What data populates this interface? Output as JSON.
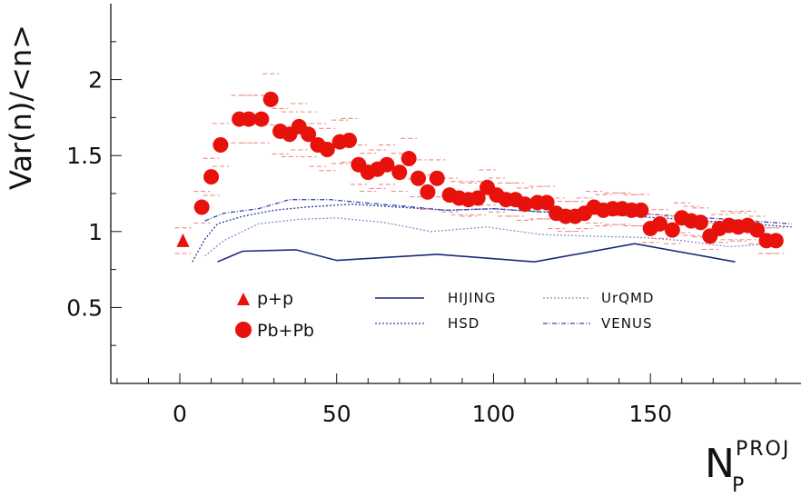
{
  "chart_data": {
    "type": "scatter",
    "xlabel": "N",
    "xlabel_sub": "P",
    "xlabel_sup": "PROJ",
    "ylabel": "Var(n)/<n>",
    "xlim": [
      -22,
      198
    ],
    "ylim": [
      0,
      2.5
    ],
    "x_ticks": [
      0,
      50,
      100,
      150
    ],
    "x_tick_labels": [
      "0",
      "50",
      "100",
      "150"
    ],
    "y_ticks": [
      0.5,
      1,
      1.5,
      2
    ],
    "y_tick_labels": [
      "0.5",
      "1",
      "1.5",
      "2"
    ],
    "grid": false,
    "legend": [
      {
        "label": "p+p",
        "marker": "triangle"
      },
      {
        "label": "Pb+Pb",
        "marker": "circle"
      },
      {
        "label": "HIJING",
        "style": "solid"
      },
      {
        "label": "HSD",
        "style": "dotted"
      },
      {
        "label": "UrQMD",
        "style": "dotted-light"
      },
      {
        "label": "VENUS",
        "style": "dash-dot"
      }
    ],
    "series": [
      {
        "name": "p+p",
        "marker": "triangle",
        "color": "#e8120c",
        "x": [
          1
        ],
        "y": [
          0.94
        ]
      },
      {
        "name": "Pb+Pb",
        "marker": "circle",
        "color": "#e8120c",
        "x": [
          7,
          10,
          13,
          19,
          22,
          26,
          29,
          32,
          35,
          38,
          41,
          44,
          47,
          51,
          54,
          57,
          60,
          63,
          66,
          70,
          73,
          76,
          79,
          82,
          86,
          89,
          92,
          95,
          98,
          101,
          104,
          107,
          110,
          114,
          117,
          120,
          123,
          126,
          129,
          132,
          135,
          138,
          141,
          144,
          147,
          150,
          153,
          157,
          160,
          163,
          166,
          169,
          172,
          175,
          178,
          181,
          184,
          187,
          190
        ],
        "y": [
          1.16,
          1.36,
          1.57,
          1.74,
          1.74,
          1.74,
          1.87,
          1.66,
          1.64,
          1.69,
          1.64,
          1.57,
          1.54,
          1.59,
          1.6,
          1.44,
          1.39,
          1.41,
          1.44,
          1.39,
          1.48,
          1.35,
          1.26,
          1.35,
          1.24,
          1.22,
          1.21,
          1.22,
          1.29,
          1.24,
          1.21,
          1.21,
          1.18,
          1.19,
          1.19,
          1.12,
          1.1,
          1.1,
          1.12,
          1.16,
          1.14,
          1.15,
          1.15,
          1.14,
          1.14,
          1.02,
          1.05,
          1.01,
          1.09,
          1.07,
          1.06,
          0.97,
          1.02,
          1.04,
          1.03,
          1.04,
          1.01,
          0.94,
          0.94
        ]
      },
      {
        "name": "HIJING",
        "style": "solid",
        "color": "#1c2a7a",
        "x": [
          12,
          20,
          37,
          50,
          82,
          113,
          145,
          177
        ],
        "y": [
          0.8,
          0.87,
          0.88,
          0.81,
          0.85,
          0.8,
          0.92,
          0.8
        ]
      },
      {
        "name": "HSD",
        "style": "dotted",
        "color": "#2b3aa0",
        "x": [
          4,
          8,
          12,
          20,
          30,
          40,
          55,
          70,
          85,
          100,
          115,
          130,
          145,
          160,
          175,
          195
        ],
        "y": [
          0.8,
          0.95,
          1.05,
          1.1,
          1.14,
          1.16,
          1.18,
          1.16,
          1.14,
          1.15,
          1.13,
          1.12,
          1.1,
          1.08,
          1.06,
          1.03
        ]
      },
      {
        "name": "UrQMD",
        "style": "dotted-light",
        "color": "#8a92c8",
        "x": [
          8,
          14,
          25,
          38,
          50,
          65,
          80,
          98,
          115,
          130,
          148,
          160,
          175,
          190
        ],
        "y": [
          0.84,
          0.94,
          1.05,
          1.08,
          1.09,
          1.06,
          1.0,
          1.03,
          0.98,
          0.97,
          0.96,
          0.94,
          0.9,
          0.92
        ]
      },
      {
        "name": "VENUS",
        "style": "dash-dot",
        "color": "#3a4ab0",
        "x": [
          8,
          14,
          25,
          35,
          48,
          58,
          70,
          85,
          100,
          115,
          130,
          145,
          160,
          175,
          195
        ],
        "y": [
          1.07,
          1.12,
          1.15,
          1.21,
          1.21,
          1.19,
          1.17,
          1.14,
          1.15,
          1.13,
          1.13,
          1.12,
          1.1,
          1.08,
          1.05
        ]
      }
    ]
  }
}
